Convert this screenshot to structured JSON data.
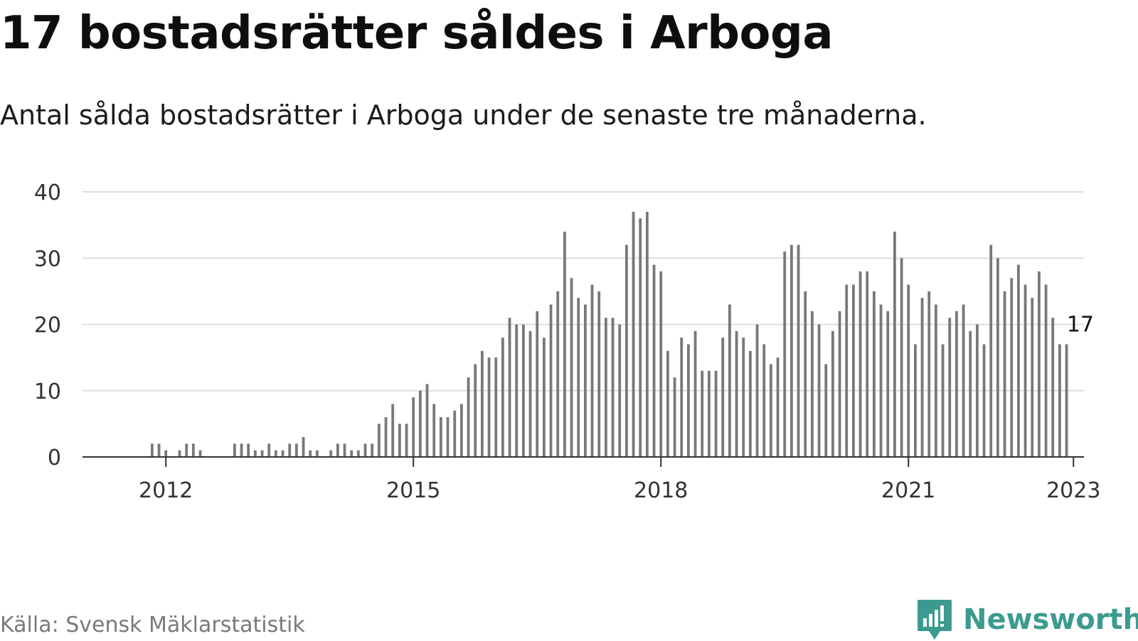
{
  "header": {
    "title": "17 bostadsrätter såldes i Arboga",
    "subtitle": "Antal sålda bostadsrätter i Arboga under de senaste tre månaderna."
  },
  "footer": {
    "source": "Källa: Svensk Mäklarstatistik",
    "brand": "Newsworthy"
  },
  "colors": {
    "bar": "#78787b",
    "highlight": "#1a9e8f",
    "grid": "#dddddd",
    "axis": "#333333",
    "brand": "#3c9a8f"
  },
  "chart_data": {
    "type": "bar",
    "title": "17 bostadsrätter såldes i Arboga",
    "xlabel": "",
    "ylabel": "",
    "ylim": [
      0,
      40
    ],
    "yticks": [
      0,
      10,
      20,
      30,
      40
    ],
    "xtick_labels": [
      "2012",
      "2015",
      "2018",
      "2021",
      "2023"
    ],
    "x_start": "2011-04",
    "x_end": "2023-02",
    "series": [
      {
        "values": [
          0,
          0,
          0,
          0,
          0,
          0,
          0,
          2,
          2,
          1,
          0,
          1,
          2,
          2,
          1,
          0,
          0,
          0,
          0,
          2,
          2,
          2,
          1,
          1,
          2,
          1,
          1,
          2,
          2,
          3,
          1,
          1,
          0,
          1,
          2,
          2,
          1,
          1,
          2,
          2,
          5,
          6,
          8,
          5,
          5,
          9,
          10,
          11,
          8,
          6,
          6,
          7,
          8,
          12,
          14,
          16,
          15,
          15,
          18,
          21,
          20,
          20,
          19,
          22,
          18,
          23,
          25,
          34,
          27,
          24,
          23,
          26,
          25,
          21,
          21,
          20,
          32,
          37,
          36,
          37,
          29,
          28,
          16,
          12,
          18,
          17,
          19,
          13,
          13,
          13,
          18,
          23,
          19,
          18,
          16,
          20,
          17,
          14,
          15,
          31,
          32,
          32,
          25,
          22,
          20,
          14,
          19,
          22,
          26,
          26,
          28,
          28,
          25,
          23,
          22,
          34,
          30,
          26,
          17,
          24,
          25,
          23,
          17,
          21,
          22,
          23,
          19,
          20,
          17,
          32,
          30,
          25,
          27,
          29,
          26,
          24,
          28,
          26,
          21,
          17,
          17
        ]
      }
    ],
    "highlight": {
      "label": "17",
      "value": 17,
      "x": "2023-02"
    }
  }
}
